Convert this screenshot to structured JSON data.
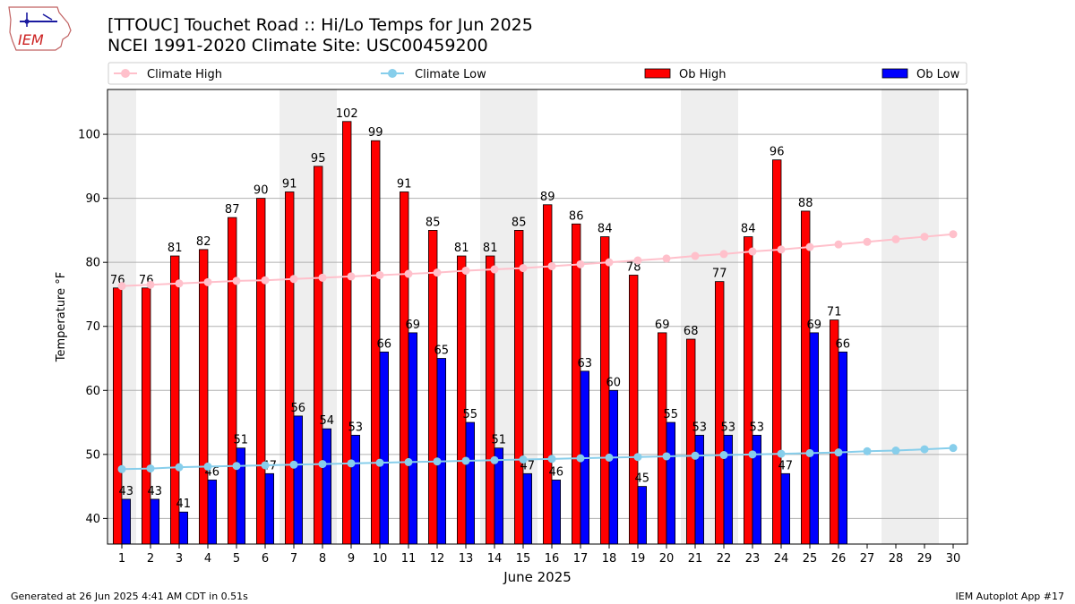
{
  "header": {
    "title_line1": "[TTOUC] Touchet Road  :: Hi/Lo Temps for Jun 2025",
    "title_line2": "NCEI 1991-2020 Climate Site: USC00459200",
    "logo_text": "IEM"
  },
  "footer": {
    "left": "Generated at 26 Jun 2025 4:41 AM CDT in 0.51s",
    "right": "IEM Autoplot App #17"
  },
  "colors": {
    "ob_high": "#ff0000",
    "ob_low": "#0000ff",
    "climate_high": "#ffc0cb",
    "climate_low": "#87ceeb",
    "weekend_band": "#eeeeee",
    "grid": "#b0b0b0"
  },
  "chart_data": {
    "type": "bar",
    "xlabel": "June 2025",
    "ylabel": "Temperature °F",
    "ylim": [
      36,
      107
    ],
    "yticks": [
      40,
      50,
      60,
      70,
      80,
      90,
      100
    ],
    "grid": "horizontal",
    "legend_position": "top",
    "x": [
      1,
      2,
      3,
      4,
      5,
      6,
      7,
      8,
      9,
      10,
      11,
      12,
      13,
      14,
      15,
      16,
      17,
      18,
      19,
      20,
      21,
      22,
      23,
      24,
      25,
      26,
      27,
      28,
      29,
      30
    ],
    "shaded_days": [
      1,
      7,
      8,
      14,
      15,
      21,
      22,
      28,
      29
    ],
    "series": [
      {
        "name": "Ob High",
        "kind": "bar",
        "color": "#ff0000",
        "values": [
          76,
          76,
          81,
          82,
          87,
          90,
          91,
          95,
          102,
          99,
          91,
          85,
          81,
          81,
          85,
          89,
          86,
          84,
          78,
          69,
          68,
          77,
          84,
          96,
          88,
          71,
          null,
          null,
          null,
          null
        ]
      },
      {
        "name": "Ob Low",
        "kind": "bar",
        "color": "#0000ff",
        "values": [
          43,
          43,
          41,
          46,
          51,
          47,
          56,
          54,
          53,
          66,
          69,
          65,
          55,
          51,
          47,
          46,
          63,
          60,
          45,
          55,
          53,
          53,
          53,
          47,
          69,
          66,
          null,
          null,
          null,
          null
        ]
      },
      {
        "name": "Climate High",
        "kind": "line",
        "color": "#ffc0cb",
        "values": [
          76.3,
          76.5,
          76.7,
          76.9,
          77.1,
          77.2,
          77.4,
          77.6,
          77.8,
          78.0,
          78.2,
          78.4,
          78.7,
          78.9,
          79.1,
          79.4,
          79.7,
          80.0,
          80.3,
          80.6,
          81.0,
          81.3,
          81.7,
          82.0,
          82.4,
          82.8,
          83.2,
          83.6,
          84.0,
          84.4
        ]
      },
      {
        "name": "Climate Low",
        "kind": "line",
        "color": "#87ceeb",
        "values": [
          47.7,
          47.8,
          48.0,
          48.1,
          48.2,
          48.3,
          48.4,
          48.5,
          48.6,
          48.7,
          48.8,
          48.9,
          49.0,
          49.1,
          49.2,
          49.3,
          49.4,
          49.5,
          49.6,
          49.7,
          49.8,
          49.9,
          50.0,
          50.1,
          50.2,
          50.3,
          50.5,
          50.6,
          50.8,
          51.0
        ]
      }
    ]
  }
}
